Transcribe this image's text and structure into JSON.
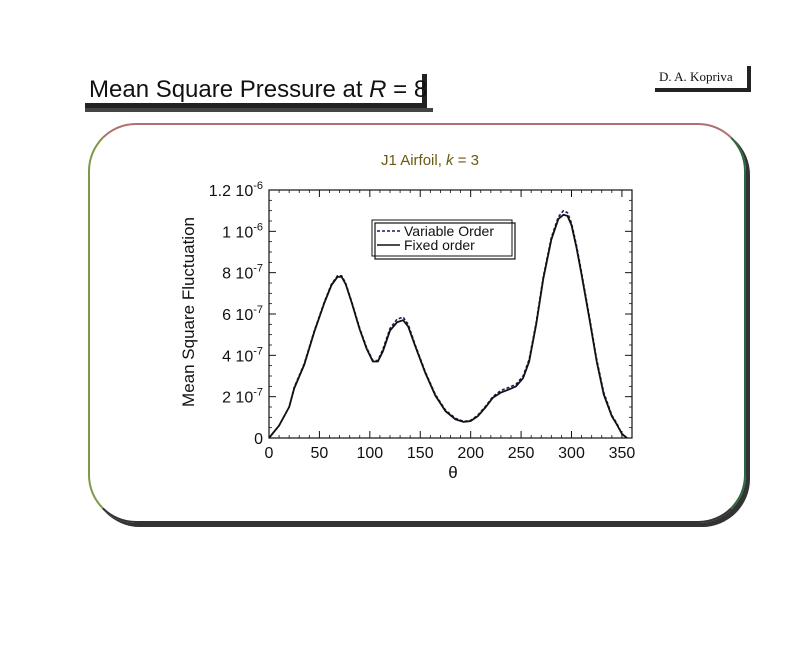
{
  "slide": {
    "title_prefix": "Mean Square Pressure at ",
    "title_var": "R",
    "title_suffix": " = 8",
    "author": "D. A. Kopriva"
  },
  "chart_data": {
    "type": "line",
    "title_prefix": "J1 Airfoil, ",
    "title_var": "k",
    "title_suffix": " = 3",
    "xlabel": "θ",
    "ylabel": "Mean Square Fluctuation",
    "xlim": [
      0,
      360
    ],
    "ylim": [
      0,
      1.2e-06
    ],
    "xticks": [
      0,
      50,
      100,
      150,
      200,
      250,
      300,
      350
    ],
    "xtick_labels": [
      "0",
      "50",
      "100",
      "150",
      "200",
      "250",
      "300",
      "350"
    ],
    "yticks": [
      0,
      2e-07,
      4e-07,
      6e-07,
      8e-07,
      1e-06,
      1.2e-06
    ],
    "ytick_labels": [
      {
        "base": "0",
        "exp": ""
      },
      {
        "base": "2 10",
        "exp": "-7"
      },
      {
        "base": "4 10",
        "exp": "-7"
      },
      {
        "base": "6 10",
        "exp": "-7"
      },
      {
        "base": "8 10",
        "exp": "-7"
      },
      {
        "base": "1 10",
        "exp": "-6"
      },
      {
        "base": "1.2 10",
        "exp": "-6"
      }
    ],
    "legend_position": "top-center",
    "series": [
      {
        "name": "Variable Order",
        "style": "dashed",
        "color": "#1a1a5a",
        "x": [
          0,
          10,
          20,
          25,
          35,
          45,
          55,
          62,
          68,
          72,
          76,
          82,
          90,
          97,
          103,
          108,
          113,
          120,
          127,
          133,
          138,
          145,
          155,
          165,
          175,
          185,
          193,
          200,
          207,
          215,
          222,
          230,
          238,
          245,
          252,
          258,
          265,
          272,
          280,
          287,
          292,
          296,
          300,
          305,
          310,
          318,
          325,
          332,
          340,
          345,
          350,
          355
        ],
        "y": [
          0.0,
          6e-08,
          1.5e-07,
          2.45e-07,
          3.6e-07,
          5.2e-07,
          6.6e-07,
          7.45e-07,
          7.85e-07,
          7.85e-07,
          7.5e-07,
          6.6e-07,
          5.3e-07,
          4.35e-07,
          3.75e-07,
          3.75e-07,
          4.3e-07,
          5.3e-07,
          5.75e-07,
          5.85e-07,
          5.5e-07,
          4.5e-07,
          3.2e-07,
          2.1e-07,
          1.35e-07,
          9.5e-08,
          8e-08,
          8.5e-08,
          1.1e-07,
          1.55e-07,
          2e-07,
          2.3e-07,
          2.45e-07,
          2.6e-07,
          3e-07,
          3.8e-07,
          5.6e-07,
          7.8e-07,
          9.7e-07,
          1.07e-06,
          1.1e-06,
          1.09e-06,
          1.04e-06,
          9.3e-07,
          8e-07,
          5.8e-07,
          3.8e-07,
          2.2e-07,
          1.1e-07,
          7e-08,
          2e-08,
          0.0
        ]
      },
      {
        "name": "Fixed order",
        "style": "solid",
        "color": "#111111",
        "x": [
          0,
          10,
          20,
          25,
          35,
          45,
          55,
          62,
          68,
          72,
          76,
          82,
          90,
          97,
          103,
          108,
          113,
          120,
          127,
          133,
          138,
          145,
          155,
          165,
          175,
          185,
          193,
          200,
          207,
          215,
          222,
          230,
          238,
          245,
          252,
          258,
          265,
          272,
          280,
          287,
          292,
          296,
          300,
          305,
          310,
          318,
          325,
          332,
          340,
          345,
          350,
          355
        ],
        "y": [
          0.0,
          6e-08,
          1.5e-07,
          2.4e-07,
          3.55e-07,
          5.15e-07,
          6.55e-07,
          7.4e-07,
          7.8e-07,
          7.8e-07,
          7.45e-07,
          6.55e-07,
          5.25e-07,
          4.3e-07,
          3.7e-07,
          3.7e-07,
          4.2e-07,
          5.2e-07,
          5.6e-07,
          5.7e-07,
          5.4e-07,
          4.45e-07,
          3.15e-07,
          2.05e-07,
          1.3e-07,
          9e-08,
          7.8e-08,
          8.2e-08,
          1.05e-07,
          1.5e-07,
          1.95e-07,
          2.2e-07,
          2.35e-07,
          2.5e-07,
          2.9e-07,
          3.7e-07,
          5.5e-07,
          7.7e-07,
          9.6e-07,
          1.06e-06,
          1.08e-06,
          1.075e-06,
          1.03e-06,
          9.2e-07,
          7.9e-07,
          5.7e-07,
          3.7e-07,
          2.1e-07,
          1.05e-07,
          6.5e-08,
          2e-08,
          0.0
        ]
      }
    ]
  }
}
